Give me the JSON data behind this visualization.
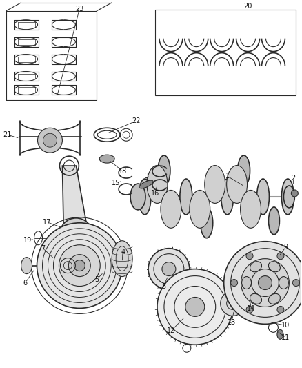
{
  "background_color": "#ffffff",
  "line_color": "#2a2a2a",
  "label_color": "#111111",
  "fig_width": 4.38,
  "fig_height": 5.33,
  "dpi": 100
}
